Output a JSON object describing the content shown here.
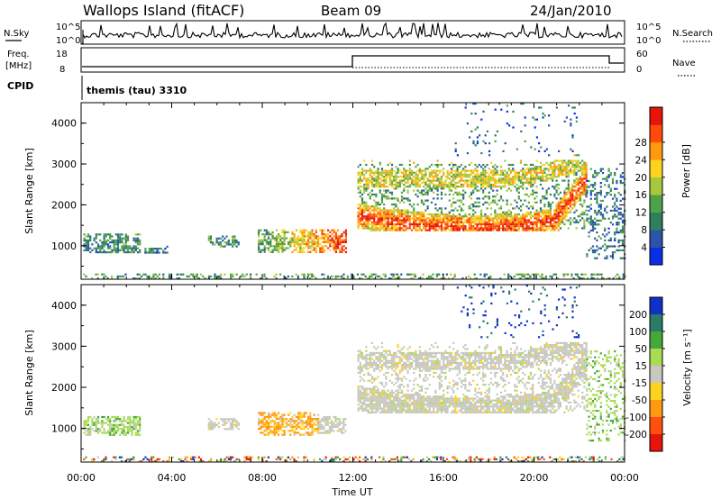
{
  "header": {
    "station": "Wallops Island (fitACF)",
    "beam": "Beam 09",
    "date": "24/Jan/2010"
  },
  "ancillary": {
    "nsky_label": "N.Sky",
    "nsky_ticks": [
      "10^5",
      "10^0"
    ],
    "nsearch_label": "N.Search",
    "nsearch_ticks": [
      "10^5",
      "10^0"
    ],
    "freq_label_line1": "Freq.",
    "freq_label_line2": "[MHz]",
    "freq_ticks": [
      "18",
      "8"
    ],
    "nave_label": "Nave",
    "nave_ticks": [
      "60",
      "0"
    ],
    "cpid_label": "CPID",
    "cpid_value": "themis (tau) 3310"
  },
  "chart_data": [
    {
      "type": "heatmap",
      "panel": "power",
      "ylabel": "Slant Range [km]",
      "xlabel": "Time UT",
      "xlim": [
        0,
        24
      ],
      "ylim": [
        180,
        4500
      ],
      "y_ticks": [
        "1000",
        "2000",
        "3000",
        "4000"
      ],
      "x_ticks": [
        "00:00",
        "04:00",
        "08:00",
        "12:00",
        "16:00",
        "20:00",
        "00:00"
      ],
      "colorbar_label": "Power [dB]",
      "colorbar_ticks": [
        "4",
        "8",
        "12",
        "16",
        "20",
        "24",
        "28"
      ],
      "colorbar_range": [
        0,
        30
      ],
      "colors": [
        "#0a2ee6",
        "#2a55a8",
        "#2f7f5c",
        "#4fa24a",
        "#a6c83c",
        "#ffd21e",
        "#ff9a10",
        "#ff4a0a",
        "#e6140a"
      ],
      "regions": [
        {
          "t0": 0.0,
          "t1": 24.0,
          "r0": 180,
          "r1": 320,
          "level": 0.35
        },
        {
          "t0": 0.1,
          "t1": 2.6,
          "r0": 850,
          "r1": 1300,
          "level": 0.3
        },
        {
          "t0": 2.8,
          "t1": 3.8,
          "r0": 850,
          "r1": 1000,
          "level": 0.25
        },
        {
          "t0": 5.6,
          "t1": 7.0,
          "r0": 1000,
          "r1": 1250,
          "level": 0.3
        },
        {
          "t0": 7.8,
          "t1": 11.7,
          "r0": 850,
          "r1": 1400,
          "level": 0.55
        },
        {
          "t0": 12.2,
          "t1": 22.3,
          "r0": 1400,
          "r1": 3100,
          "level": 0.6
        },
        {
          "t0": 22.3,
          "t1": 24.0,
          "r0": 700,
          "r1": 2900,
          "level": 0.25
        },
        {
          "t0": 16.5,
          "t1": 22.0,
          "r0": 3200,
          "r1": 4500,
          "level": 0.2
        }
      ]
    },
    {
      "type": "heatmap",
      "panel": "velocity",
      "ylabel": "Slant Range [km]",
      "xlabel": "Time UT",
      "xlim": [
        0,
        24
      ],
      "ylim": [
        180,
        4500
      ],
      "y_ticks": [
        "1000",
        "2000",
        "3000",
        "4000"
      ],
      "x_ticks": [
        "00:00",
        "04:00",
        "08:00",
        "12:00",
        "16:00",
        "20:00",
        "00:00"
      ],
      "colorbar_label": "Velocity [m s⁻¹]",
      "colorbar_ticks": [
        "200",
        "100",
        "50",
        "15",
        "-15",
        "-50",
        "-100",
        "-200"
      ],
      "colorbar_range": [
        -250,
        250
      ],
      "colors": [
        "#1030c8",
        "#2c7a68",
        "#44a83a",
        "#a8dc52",
        "#c8c8c0",
        "#ffd21e",
        "#ff9a10",
        "#ff5010",
        "#e6140a"
      ],
      "regions": [
        {
          "t0": 0.0,
          "t1": 24.0,
          "r0": 180,
          "r1": 320,
          "vel": "mixed"
        },
        {
          "t0": 0.1,
          "t1": 2.6,
          "r0": 850,
          "r1": 1300,
          "vel": "positive"
        },
        {
          "t0": 5.6,
          "t1": 7.0,
          "r0": 1000,
          "r1": 1250,
          "vel": "near-zero"
        },
        {
          "t0": 7.8,
          "t1": 10.5,
          "r0": 850,
          "r1": 1400,
          "vel": "negative"
        },
        {
          "t0": 10.5,
          "t1": 11.7,
          "r0": 900,
          "r1": 1300,
          "vel": "near-zero"
        },
        {
          "t0": 12.2,
          "t1": 22.3,
          "r0": 1400,
          "r1": 3100,
          "vel": "near-zero"
        },
        {
          "t0": 22.3,
          "t1": 24.0,
          "r0": 700,
          "r1": 2900,
          "vel": "positive"
        },
        {
          "t0": 16.5,
          "t1": 22.0,
          "r0": 3200,
          "r1": 4500,
          "vel": "strong-positive"
        }
      ]
    }
  ]
}
